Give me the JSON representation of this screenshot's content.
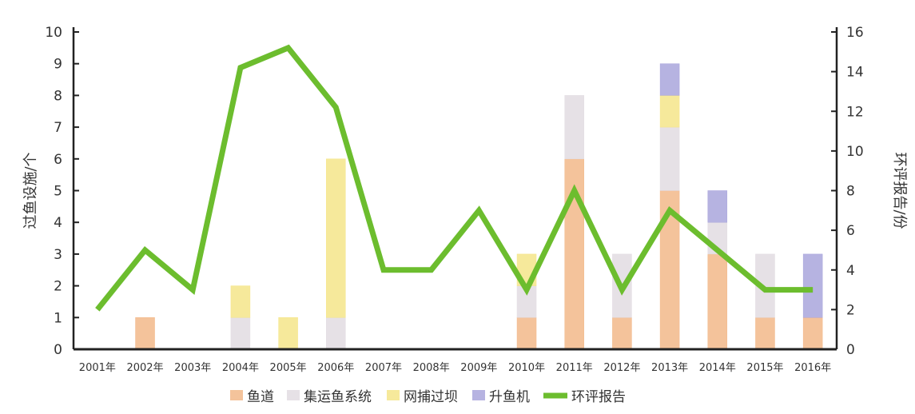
{
  "chart_data": {
    "type": "bar",
    "categories": [
      "2001年",
      "2002年",
      "2003年",
      "2004年",
      "2005年",
      "2006年",
      "2007年",
      "2008年",
      "2009年",
      "2010年",
      "2011年",
      "2012年",
      "2013年",
      "2014年",
      "2015年",
      "2016年"
    ],
    "series": [
      {
        "name": "鱼道",
        "kind": "bar",
        "axis": "left",
        "color": "#f2b98a",
        "values": [
          0,
          1,
          0,
          0,
          0,
          0,
          0,
          0,
          0,
          1,
          6,
          1,
          5,
          3,
          1,
          1
        ]
      },
      {
        "name": "集运鱼系统",
        "kind": "bar",
        "axis": "left",
        "color": "#e2dce2",
        "values": [
          0,
          0,
          0,
          1,
          0,
          1,
          0,
          0,
          0,
          1,
          2,
          2,
          2,
          1,
          2,
          0
        ]
      },
      {
        "name": "网捕过坝",
        "kind": "bar",
        "axis": "left",
        "color": "#f5e58a",
        "values": [
          0,
          0,
          0,
          1,
          1,
          5,
          0,
          0,
          0,
          1,
          0,
          0,
          1,
          0,
          0,
          0
        ]
      },
      {
        "name": "升鱼机",
        "kind": "bar",
        "axis": "left",
        "color": "#a9a6dc",
        "values": [
          0,
          0,
          0,
          0,
          0,
          0,
          0,
          0,
          0,
          0,
          0,
          0,
          1,
          1,
          0,
          2
        ]
      },
      {
        "name": "环评报告",
        "kind": "line",
        "axis": "right",
        "color": "#6cbd2e",
        "values": [
          2,
          5,
          3,
          14.2,
          15.2,
          12.2,
          4,
          4,
          7,
          3,
          8,
          3,
          7,
          5,
          3,
          3
        ]
      }
    ],
    "ylabel_left": "过鱼设施/个",
    "ylabel_right": "环评报告/份",
    "ylim_left": [
      0,
      10
    ],
    "ylim_right": [
      0,
      16
    ],
    "yticks_left": [
      "0",
      "1",
      "2",
      "3",
      "4",
      "5",
      "6",
      "7",
      "8",
      "9",
      "10"
    ],
    "yticks_right": [
      "0",
      "2",
      "4",
      "6",
      "8",
      "10",
      "12",
      "14",
      "16"
    ],
    "legend_position": "bottom",
    "grid": false
  }
}
